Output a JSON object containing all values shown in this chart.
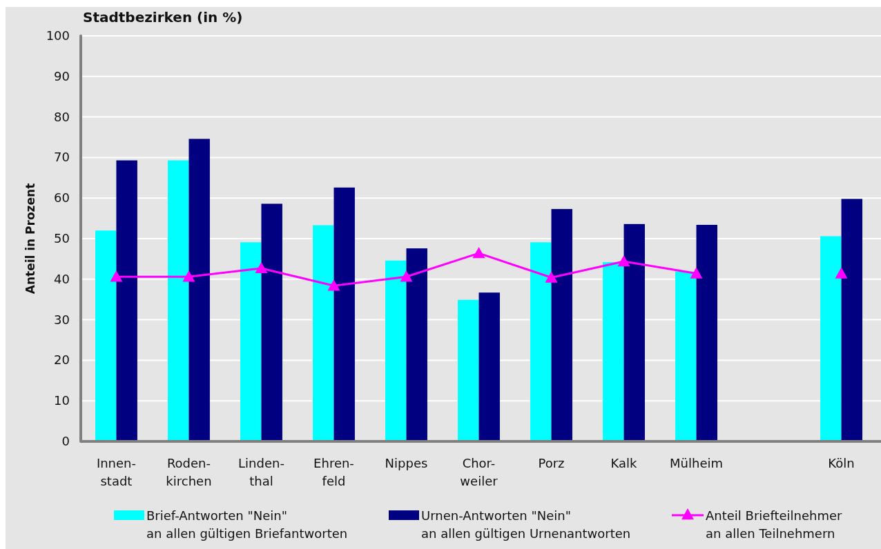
{
  "chart_data": {
    "type": "bar",
    "title": "Stadtbezirken (in %)",
    "ylabel": "Anteil in Prozent",
    "categories": [
      "Innen-\nstadt",
      "Roden-\nkirchen",
      "Linden-\nthal",
      "Ehren-\nfeld",
      "Nippes",
      "Chor-\nweiler",
      "Porz",
      "Kalk",
      "Mülheim",
      null,
      "Köln"
    ],
    "series": [
      {
        "name": "Brief-Antworten \"Nein\"\nan allen gültigen Briefantworten",
        "color": "#00ffff",
        "values": [
          52,
          69.3,
          49.1,
          53.3,
          44.6,
          34.9,
          49.1,
          44.2,
          41.9,
          null,
          50.6
        ]
      },
      {
        "name": "Urnen-Antworten \"Nein\"\nan allen gültigen Urnenantworten",
        "color": "#000080",
        "values": [
          69.3,
          74.6,
          58.6,
          62.6,
          47.6,
          36.7,
          57.3,
          53.6,
          53.4,
          null,
          59.8
        ]
      },
      {
        "name": "Anteil Briefteilnehmer\nan allen Teilnehmern",
        "type": "line",
        "color": "#ff00ff",
        "marker": "triangle",
        "values": [
          40.6,
          40.6,
          42.7,
          38.4,
          40.6,
          46.4,
          40.4,
          44.4,
          41.4,
          null,
          41.4
        ]
      }
    ],
    "ylim": [
      0,
      100
    ],
    "yticks": [
      0,
      10,
      20,
      30,
      40,
      50,
      60,
      70,
      80,
      90,
      100
    ],
    "grid": "y",
    "legend": "bottom"
  }
}
